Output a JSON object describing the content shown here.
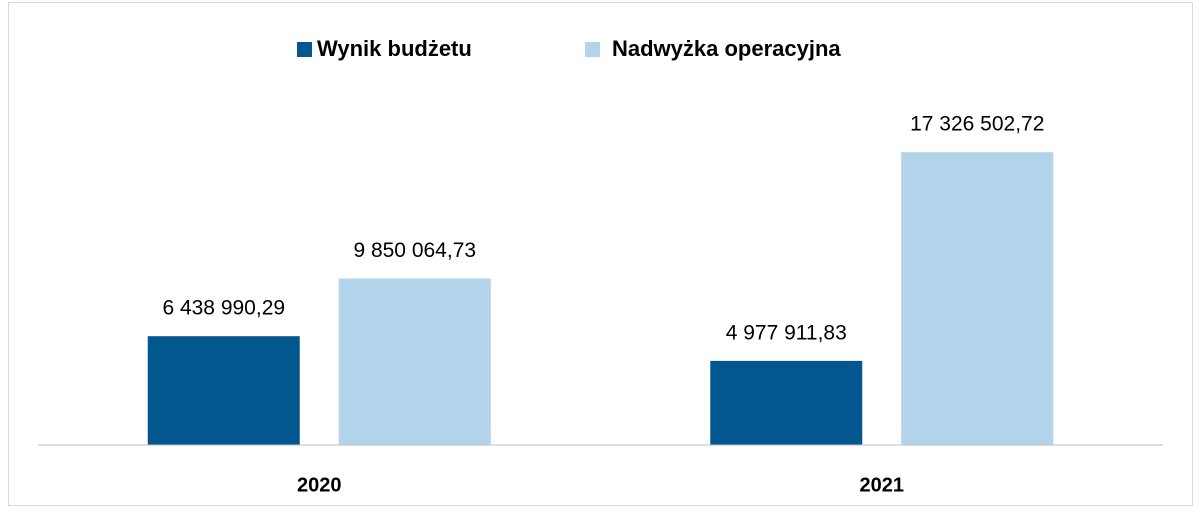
{
  "chart_data": {
    "type": "bar",
    "categories": [
      "2020",
      "2021"
    ],
    "series": [
      {
        "name": "Wynik budżetu",
        "color": "#02578f",
        "values": [
          6438990.29,
          4977911.83
        ],
        "value_labels": [
          "6 438 990,29",
          "4 977 911,83"
        ]
      },
      {
        "name": "Nadwyżka operacyjna",
        "color": "#b1d4eb",
        "values": [
          9850064.73,
          17326502.72
        ],
        "value_labels": [
          "9 850 064,73",
          "17 326 502,72"
        ]
      }
    ],
    "ylim": [
      0,
      20000000
    ],
    "legend": "top"
  }
}
